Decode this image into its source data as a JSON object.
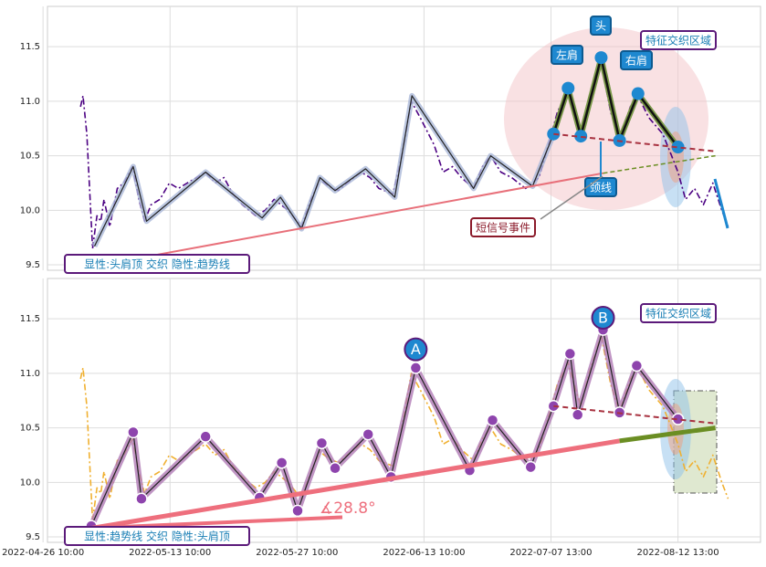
{
  "chart_data": [
    {
      "type": "line",
      "ylim": [
        9.45,
        11.87
      ],
      "yticks": [
        9.5,
        {
          "value": 10,
          "label": "10.0"
        },
        10.5,
        {
          "value": 11,
          "label": "11.0"
        },
        11.5
      ],
      "xlim": [
        0.7,
        113
      ],
      "grid": true,
      "series": [
        {
          "role": "price",
          "color": "#4b0082",
          "style": "dashdot",
          "x": [
            5.9,
            6.3,
            6.9,
            7.8,
            8.5,
            9.1,
            9.6,
            10.5,
            11.7,
            12.7,
            14.1,
            15.1,
            16.0,
            17.0,
            18.4,
            19.9,
            21.3,
            22.7,
            24.2,
            25.6,
            27.1,
            28.5,
            29.9,
            31.4,
            33.5,
            35.0,
            36.4,
            38.6,
            40.7,
            42.2,
            43.6,
            45.0,
            46.5,
            47.9,
            50.1,
            51.5,
            52.9,
            55.1,
            56.5,
            58.0,
            59.4,
            61.6,
            63.0,
            64.5,
            65.9,
            67.8,
            69.2,
            70.5,
            72.1,
            73.8,
            76.0,
            78.1,
            79.6,
            81.0,
            82.7,
            83.9,
            84.7,
            86.0,
            87.9,
            89.4,
            90.8,
            92.5,
            93.7,
            95.4,
            97.6,
            99.0,
            100.0,
            101.2,
            102.6,
            104.0,
            105.5,
            106.9,
            107.9
          ],
          "values": [
            10.95,
            11.05,
            10.7,
            9.65,
            9.95,
            9.9,
            10.1,
            9.85,
            10.2,
            10.25,
            10.4,
            10.1,
            9.9,
            10.05,
            10.1,
            10.25,
            10.2,
            10.25,
            10.3,
            10.35,
            10.25,
            10.3,
            10.15,
            10.05,
            9.95,
            10.0,
            10.1,
            10.0,
            9.85,
            10.1,
            10.28,
            10.22,
            10.18,
            10.25,
            10.35,
            10.3,
            10.2,
            10.15,
            10.5,
            11.0,
            10.85,
            10.6,
            10.35,
            10.4,
            10.3,
            10.2,
            10.4,
            10.5,
            10.35,
            10.3,
            10.2,
            10.3,
            10.6,
            10.9,
            11.1,
            10.85,
            10.7,
            11.0,
            11.35,
            10.9,
            10.65,
            10.95,
            11.05,
            10.85,
            10.7,
            10.5,
            10.35,
            10.1,
            10.2,
            10.05,
            10.25,
            10.0,
            9.85
          ]
        },
        {
          "role": "zigzag",
          "color": "#222222",
          "halo": "#aab8d8",
          "x": [
            8.1,
            14.2,
            16.3,
            25.6,
            34.5,
            37.4,
            40.7,
            43.6,
            46,
            50.8,
            55.4,
            58.1,
            67.8,
            70.5,
            77.1,
            80.4,
            82.7,
            84.7,
            87.9,
            90.8,
            93.7,
            100
          ],
          "values": [
            9.67,
            10.4,
            9.9,
            10.35,
            9.93,
            10.12,
            9.83,
            10.3,
            10.18,
            10.38,
            10.12,
            11.05,
            10.2,
            10.5,
            10.22,
            10.7,
            11.12,
            10.68,
            11.4,
            10.64,
            11.07,
            10.58
          ]
        },
        {
          "role": "pattern",
          "color": "#111111",
          "halo": "#6b8e23",
          "marker": "#1e88d0",
          "x": [
            80.4,
            82.7,
            84.7,
            87.9,
            90.8,
            93.7,
            100
          ],
          "values": [
            10.7,
            11.12,
            10.68,
            11.4,
            10.64,
            11.07,
            10.58
          ]
        },
        {
          "role": "trend",
          "color": "#e8707a",
          "x": [
            17.7,
            88.2
          ],
          "values": [
            9.59,
            10.34
          ]
        },
        {
          "role": "trend-dash",
          "color": "#6b8e23",
          "x": [
            88.2,
            105.9
          ],
          "values": [
            10.34,
            10.5
          ]
        },
        {
          "role": "neck",
          "color": "#a83240",
          "x": [
            80.4,
            105.9
          ],
          "values": [
            10.7,
            10.54
          ]
        }
      ],
      "annotations": [
        {
          "text": "头"
        },
        {
          "text": "左肩"
        },
        {
          "text": "右肩"
        },
        {
          "text": "特征交织区域"
        },
        {
          "text": "颈线"
        },
        {
          "text": "短信号事件"
        },
        {
          "text": "显性:头肩顶 交织 隐性:趋势线"
        }
      ]
    },
    {
      "type": "line",
      "ylim": [
        9.45,
        11.87
      ],
      "yticks": [
        9.5,
        {
          "value": 10,
          "label": "10.0"
        },
        10.5,
        {
          "value": 11,
          "label": "11.0"
        },
        11.5
      ],
      "xlim": [
        0.7,
        113
      ],
      "grid": true,
      "xticks": [
        {
          "value": 0,
          "label": "2022-04-26 10:00"
        },
        {
          "value": 20,
          "label": "2022-05-13 10:00"
        },
        {
          "value": 40,
          "label": "2022-05-27 10:00"
        },
        {
          "value": 60,
          "label": "2022-06-13 10:00"
        },
        {
          "value": 80,
          "label": "2022-07-07 13:00"
        },
        {
          "value": 100,
          "label": "2022-08-12 13:00"
        }
      ],
      "series": [
        {
          "role": "price",
          "color": "#f0b030",
          "style": "dashdot",
          "x": [
            5.9,
            6.3,
            6.9,
            7.8,
            8.5,
            9.1,
            9.6,
            10.5,
            11.7,
            12.7,
            14.1,
            15.1,
            16.0,
            17.0,
            18.4,
            19.9,
            21.3,
            22.7,
            24.2,
            25.6,
            27.1,
            28.5,
            29.9,
            31.4,
            33.5,
            35.0,
            36.4,
            38.6,
            40.7,
            42.2,
            43.6,
            45.0,
            46.5,
            47.9,
            50.1,
            51.5,
            52.9,
            55.1,
            56.5,
            58.0,
            59.4,
            61.6,
            63.0,
            64.5,
            65.9,
            67.8,
            69.2,
            70.5,
            72.1,
            73.8,
            76.0,
            78.1,
            79.6,
            81.0,
            82.7,
            83.9,
            84.7,
            86.0,
            87.9,
            89.4,
            90.8,
            92.5,
            93.7,
            95.4,
            97.6,
            99.0,
            100.0,
            101.2,
            102.6,
            104.0,
            105.5,
            106.9,
            107.9
          ],
          "values": [
            10.95,
            11.05,
            10.7,
            9.65,
            9.95,
            9.9,
            10.1,
            9.85,
            10.2,
            10.25,
            10.4,
            10.1,
            9.9,
            10.05,
            10.1,
            10.25,
            10.2,
            10.25,
            10.3,
            10.35,
            10.25,
            10.3,
            10.15,
            10.05,
            9.95,
            10.0,
            10.1,
            10.0,
            9.85,
            10.1,
            10.28,
            10.22,
            10.18,
            10.25,
            10.35,
            10.3,
            10.2,
            10.15,
            10.5,
            11.0,
            10.85,
            10.6,
            10.35,
            10.4,
            10.3,
            10.2,
            10.4,
            10.5,
            10.35,
            10.3,
            10.2,
            10.3,
            10.6,
            10.9,
            11.1,
            10.85,
            10.7,
            11.0,
            11.35,
            10.9,
            10.65,
            10.95,
            11.05,
            10.85,
            10.7,
            10.5,
            10.35,
            10.1,
            10.2,
            10.05,
            10.25,
            10.0,
            9.85
          ]
        },
        {
          "role": "zigzag",
          "color": "#222222",
          "halo": "#b07ab5",
          "marker": "#8e44ad",
          "x": [
            7.6,
            14.2,
            15.5,
            25.6,
            34.1,
            37.6,
            40.1,
            43.9,
            46,
            51.2,
            54.8,
            58.7,
            67.2,
            70.8,
            76.8,
            80.4,
            83,
            84.2,
            88.2,
            90.8,
            93.5,
            100
          ],
          "values": [
            9.6,
            10.46,
            9.85,
            10.42,
            9.86,
            10.18,
            9.74,
            10.36,
            10.13,
            10.44,
            10.05,
            11.05,
            10.11,
            10.57,
            10.14,
            10.7,
            11.18,
            10.62,
            11.4,
            10.64,
            11.07,
            10.58
          ]
        },
        {
          "role": "trend",
          "color": "#ee6f7d",
          "x": [
            7.6,
            90.8
          ],
          "values": [
            9.58,
            10.38
          ]
        },
        {
          "role": "trend-end",
          "color": "#6b8e23",
          "x": [
            90.8,
            105.9
          ],
          "values": [
            10.38,
            10.5
          ]
        },
        {
          "role": "neck",
          "color": "#a83240",
          "x": [
            80.4,
            105.9
          ],
          "values": [
            10.7,
            10.54
          ]
        }
      ],
      "annotations": [
        {
          "text": "A"
        },
        {
          "text": "B"
        },
        {
          "text": "特征交织区域"
        },
        {
          "text": "∡28.8°"
        },
        {
          "text": "显性:趋势线 交织 隐性:头肩顶"
        }
      ]
    }
  ]
}
